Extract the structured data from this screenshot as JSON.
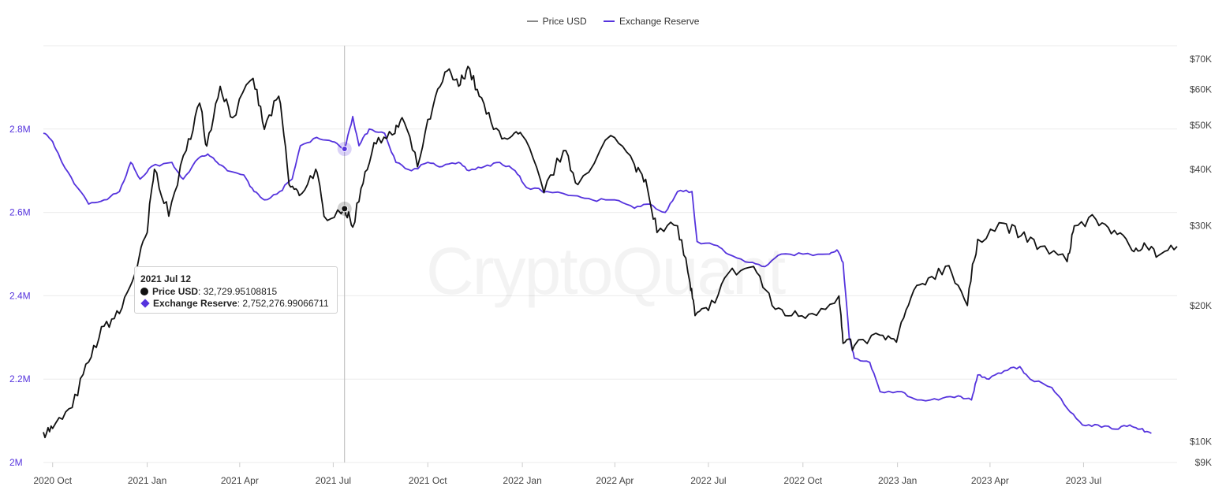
{
  "legend": {
    "price_label": "Price USD",
    "reserve_label": "Exchange Reserve"
  },
  "watermark": "CryptoQuant",
  "tooltip": {
    "date": "2021 Jul 12",
    "price_name": "Price USD",
    "price_value": ": 32,729.95108815",
    "reserve_name": "Exchange Reserve",
    "reserve_value": ": 2,752,276.99066711"
  },
  "colors": {
    "price": "#111111",
    "reserve": "#5533dd",
    "grid": "#ebebeb",
    "left_axis_text": "#5533dd",
    "axis_text": "#444444"
  },
  "chart_data": {
    "type": "line",
    "x_start": "2020-09-22",
    "x_end": "2023-09-30",
    "x_tick_labels": [
      "2020 Oct",
      "2021 Jan",
      "2021 Apr",
      "2021 Jul",
      "2021 Oct",
      "2022 Jan",
      "2022 Apr",
      "2022 Jul",
      "2022 Oct",
      "2023 Jan",
      "2023 Apr",
      "2023 Jul"
    ],
    "x_tick_dates": [
      "2020-10-01",
      "2021-01-01",
      "2021-04-01",
      "2021-07-01",
      "2021-10-01",
      "2022-01-01",
      "2022-04-01",
      "2022-07-01",
      "2022-10-01",
      "2023-01-01",
      "2023-04-01",
      "2023-07-01"
    ],
    "left_axis": {
      "series": "Exchange Reserve",
      "range": [
        2000000,
        3000000
      ],
      "ticks": [
        2000000,
        2200000,
        2400000,
        2600000,
        2800000
      ],
      "tick_labels": [
        "2M",
        "2.2M",
        "2.4M",
        "2.6M",
        "2.8M"
      ]
    },
    "right_axis": {
      "series": "Price USD",
      "scale": "log",
      "range": [
        9000,
        75000
      ],
      "ticks": [
        9000,
        10000,
        20000,
        30000,
        40000,
        50000,
        60000,
        70000
      ],
      "tick_labels": [
        "$9K",
        "$10K",
        "$20K",
        "$30K",
        "$40K",
        "$50K",
        "$60K",
        "$70K"
      ]
    },
    "grid": "horizontal",
    "legend_position": "top-center",
    "crosshair_date": "2021-07-12",
    "series": [
      {
        "name": "Price USD",
        "axis": "right",
        "points": [
          [
            "2020-09-22",
            10500
          ],
          [
            "2020-10-01",
            10700
          ],
          [
            "2020-10-20",
            11900
          ],
          [
            "2020-11-05",
            15000
          ],
          [
            "2020-11-20",
            18000
          ],
          [
            "2020-12-05",
            19200
          ],
          [
            "2020-12-20",
            23500
          ],
          [
            "2021-01-01",
            29000
          ],
          [
            "2021-01-08",
            40000
          ],
          [
            "2021-01-22",
            31500
          ],
          [
            "2021-02-08",
            44000
          ],
          [
            "2021-02-21",
            56000
          ],
          [
            "2021-02-28",
            45000
          ],
          [
            "2021-03-13",
            61000
          ],
          [
            "2021-03-25",
            52000
          ],
          [
            "2021-04-14",
            63500
          ],
          [
            "2021-04-25",
            49000
          ],
          [
            "2021-05-09",
            58000
          ],
          [
            "2021-05-19",
            37000
          ],
          [
            "2021-05-29",
            35000
          ],
          [
            "2021-06-14",
            40000
          ],
          [
            "2021-06-22",
            31500
          ],
          [
            "2021-07-12",
            32730
          ],
          [
            "2021-07-20",
            29800
          ],
          [
            "2021-08-01",
            39500
          ],
          [
            "2021-08-14",
            47000
          ],
          [
            "2021-08-30",
            48000
          ],
          [
            "2021-09-06",
            52000
          ],
          [
            "2021-09-21",
            40500
          ],
          [
            "2021-10-06",
            55000
          ],
          [
            "2021-10-20",
            66000
          ],
          [
            "2021-10-31",
            61000
          ],
          [
            "2021-11-09",
            67500
          ],
          [
            "2021-11-20",
            58000
          ],
          [
            "2021-12-04",
            49000
          ],
          [
            "2021-12-20",
            47000
          ],
          [
            "2022-01-01",
            47500
          ],
          [
            "2022-01-22",
            35500
          ],
          [
            "2022-02-10",
            44000
          ],
          [
            "2022-02-24",
            37000
          ],
          [
            "2022-03-28",
            47500
          ],
          [
            "2022-04-20",
            41000
          ],
          [
            "2022-05-01",
            38000
          ],
          [
            "2022-05-12",
            29000
          ],
          [
            "2022-06-01",
            30000
          ],
          [
            "2022-06-13",
            22500
          ],
          [
            "2022-06-18",
            19000
          ],
          [
            "2022-07-01",
            19500
          ],
          [
            "2022-07-20",
            23500
          ],
          [
            "2022-08-14",
            24400
          ],
          [
            "2022-09-01",
            20000
          ],
          [
            "2022-09-20",
            19000
          ],
          [
            "2022-10-10",
            19200
          ],
          [
            "2022-11-05",
            21000
          ],
          [
            "2022-11-09",
            16500
          ],
          [
            "2022-11-20",
            16300
          ],
          [
            "2022-12-15",
            17200
          ],
          [
            "2022-12-31",
            16600
          ],
          [
            "2023-01-14",
            20800
          ],
          [
            "2023-01-31",
            23000
          ],
          [
            "2023-02-20",
            24500
          ],
          [
            "2023-03-10",
            20000
          ],
          [
            "2023-03-20",
            28000
          ],
          [
            "2023-04-14",
            30400
          ],
          [
            "2023-05-01",
            28500
          ],
          [
            "2023-05-20",
            27000
          ],
          [
            "2023-06-15",
            25000
          ],
          [
            "2023-06-22",
            30000
          ],
          [
            "2023-07-13",
            31000
          ],
          [
            "2023-07-31",
            29300
          ],
          [
            "2023-08-17",
            26500
          ],
          [
            "2023-08-29",
            27500
          ],
          [
            "2023-09-12",
            25800
          ],
          [
            "2023-09-30",
            27000
          ]
        ]
      },
      {
        "name": "Exchange Reserve",
        "axis": "left",
        "points": [
          [
            "2020-09-22",
            2790000
          ],
          [
            "2020-10-01",
            2770000
          ],
          [
            "2020-10-10",
            2720000
          ],
          [
            "2020-10-25",
            2660000
          ],
          [
            "2020-11-05",
            2620000
          ],
          [
            "2020-11-20",
            2630000
          ],
          [
            "2020-12-05",
            2650000
          ],
          [
            "2020-12-16",
            2720000
          ],
          [
            "2020-12-25",
            2680000
          ],
          [
            "2021-01-05",
            2710000
          ],
          [
            "2021-01-25",
            2720000
          ],
          [
            "2021-02-05",
            2680000
          ],
          [
            "2021-02-20",
            2730000
          ],
          [
            "2021-03-01",
            2740000
          ],
          [
            "2021-03-10",
            2720000
          ],
          [
            "2021-03-20",
            2700000
          ],
          [
            "2021-04-05",
            2690000
          ],
          [
            "2021-04-15",
            2650000
          ],
          [
            "2021-04-25",
            2630000
          ],
          [
            "2021-05-10",
            2650000
          ],
          [
            "2021-05-22",
            2680000
          ],
          [
            "2021-05-30",
            2760000
          ],
          [
            "2021-06-15",
            2780000
          ],
          [
            "2021-06-30",
            2770000
          ],
          [
            "2021-07-12",
            2752277
          ],
          [
            "2021-07-20",
            2830000
          ],
          [
            "2021-07-26",
            2760000
          ],
          [
            "2021-08-05",
            2800000
          ],
          [
            "2021-08-20",
            2790000
          ],
          [
            "2021-08-31",
            2720000
          ],
          [
            "2021-09-15",
            2700000
          ],
          [
            "2021-10-01",
            2720000
          ],
          [
            "2021-10-15",
            2710000
          ],
          [
            "2021-10-31",
            2720000
          ],
          [
            "2021-11-10",
            2700000
          ],
          [
            "2021-11-25",
            2710000
          ],
          [
            "2021-12-10",
            2720000
          ],
          [
            "2021-12-25",
            2700000
          ],
          [
            "2022-01-05",
            2660000
          ],
          [
            "2022-01-25",
            2650000
          ],
          [
            "2022-02-20",
            2640000
          ],
          [
            "2022-03-10",
            2630000
          ],
          [
            "2022-04-01",
            2630000
          ],
          [
            "2022-04-20",
            2610000
          ],
          [
            "2022-05-05",
            2620000
          ],
          [
            "2022-05-20",
            2600000
          ],
          [
            "2022-06-01",
            2650000
          ],
          [
            "2022-06-15",
            2650000
          ],
          [
            "2022-06-20",
            2530000
          ],
          [
            "2022-07-10",
            2520000
          ],
          [
            "2022-07-20",
            2500000
          ],
          [
            "2022-08-10",
            2480000
          ],
          [
            "2022-08-25",
            2470000
          ],
          [
            "2022-09-10",
            2500000
          ],
          [
            "2022-10-01",
            2500000
          ],
          [
            "2022-10-25",
            2500000
          ],
          [
            "2022-11-03",
            2510000
          ],
          [
            "2022-11-09",
            2480000
          ],
          [
            "2022-11-15",
            2300000
          ],
          [
            "2022-11-20",
            2250000
          ],
          [
            "2022-12-05",
            2240000
          ],
          [
            "2022-12-15",
            2170000
          ],
          [
            "2023-01-05",
            2170000
          ],
          [
            "2023-01-20",
            2150000
          ],
          [
            "2023-02-10",
            2150000
          ],
          [
            "2023-03-01",
            2160000
          ],
          [
            "2023-03-14",
            2150000
          ],
          [
            "2023-03-20",
            2210000
          ],
          [
            "2023-03-31",
            2200000
          ],
          [
            "2023-04-15",
            2220000
          ],
          [
            "2023-04-30",
            2230000
          ],
          [
            "2023-05-10",
            2200000
          ],
          [
            "2023-05-31",
            2180000
          ],
          [
            "2023-06-15",
            2130000
          ],
          [
            "2023-06-30",
            2090000
          ],
          [
            "2023-07-15",
            2090000
          ],
          [
            "2023-08-01",
            2080000
          ],
          [
            "2023-08-15",
            2090000
          ],
          [
            "2023-08-25",
            2080000
          ],
          [
            "2023-09-05",
            2070000
          ]
        ]
      }
    ]
  }
}
